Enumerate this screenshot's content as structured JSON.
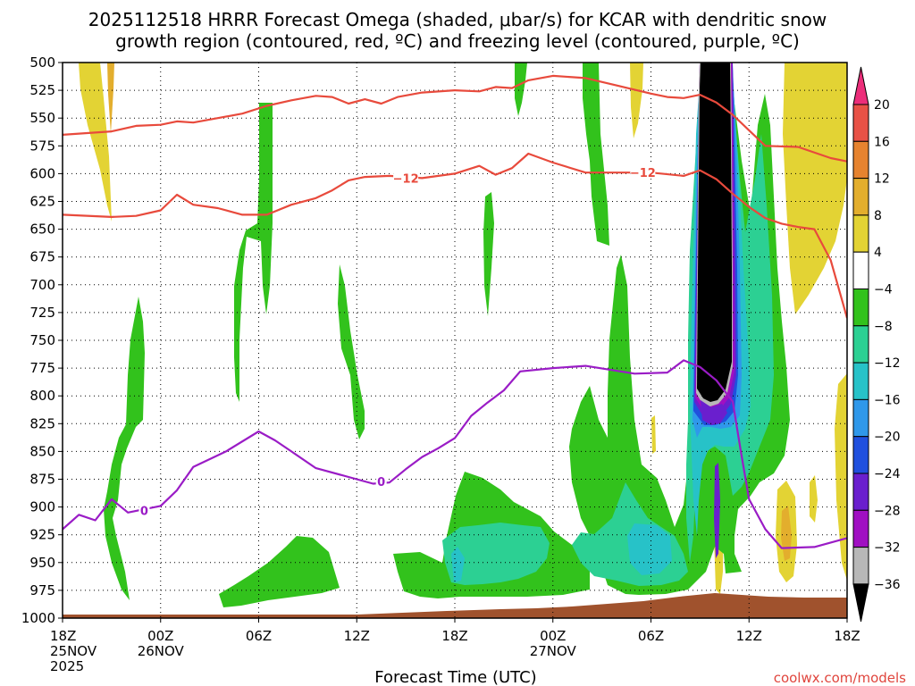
{
  "title_lines": [
    "2025112518 HRRR Forecast Omega (shaded, μbar/s) for KCAR with dendritic snow",
    "growth region (contoured, red, ºC) and freezing level (contoured, purple, ºC)"
  ],
  "credit": "coolwx.com/models",
  "chart_data": {
    "type": "time-height cross-section",
    "title": "2025112518 HRRR Forecast Omega (shaded, μbar/s) for KCAR with dendritic snow growth region (contoured, red, ºC) and freezing level (contoured, purple, ºC)",
    "xlabel": "Forecast Time (UTC)",
    "ylabel": "",
    "x_range_hours": [
      0,
      48
    ],
    "y_range_hpa": [
      1000,
      500
    ],
    "grid": "dotted",
    "y_ticks": [
      "500",
      "525",
      "550",
      "575",
      "600",
      "625",
      "650",
      "675",
      "700",
      "725",
      "750",
      "775",
      "800",
      "825",
      "850",
      "875",
      "900",
      "925",
      "950",
      "975",
      "1000"
    ],
    "x_ticks": [
      {
        "hour": 0,
        "lines": [
          "18Z",
          "25NOV",
          "2025"
        ]
      },
      {
        "hour": 6,
        "lines": [
          "00Z",
          "26NOV"
        ]
      },
      {
        "hour": 12,
        "lines": [
          "06Z"
        ]
      },
      {
        "hour": 18,
        "lines": [
          "12Z"
        ]
      },
      {
        "hour": 24,
        "lines": [
          "18Z"
        ]
      },
      {
        "hour": 30,
        "lines": [
          "00Z",
          "27NOV"
        ]
      },
      {
        "hour": 36,
        "lines": [
          "06Z"
        ]
      },
      {
        "hour": 42,
        "lines": [
          "12Z"
        ]
      },
      {
        "hour": 48,
        "lines": [
          "18Z"
        ]
      }
    ],
    "colorbar": {
      "labels": [
        "20",
        "16",
        "12",
        "8",
        "4",
        "−4",
        "−8",
        "−12",
        "−16",
        "−20",
        "−24",
        "−28",
        "−32",
        "−36"
      ],
      "colors": [
        "#ec2e7a",
        "#e85246",
        "#e6832f",
        "#e3ae2d",
        "#e3d334",
        "#ffffff",
        "#32c21c",
        "#2cd093",
        "#27c2c8",
        "#2f98ea",
        "#2050de",
        "#6a1fce",
        "#a00fc2",
        "#b8b8b8",
        "#000000"
      ]
    },
    "series": [
      {
        "name": "-12",
        "color": "#e84a3c",
        "points": [
          [
            0,
            565
          ],
          [
            3,
            562
          ],
          [
            4.5,
            557
          ],
          [
            6,
            556
          ],
          [
            7,
            553
          ],
          [
            8,
            554
          ],
          [
            9.5,
            550
          ],
          [
            11,
            546
          ],
          [
            12.5,
            539
          ],
          [
            14,
            534
          ],
          [
            15.5,
            530
          ],
          [
            16.5,
            531
          ],
          [
            17.5,
            537
          ],
          [
            18.5,
            533
          ],
          [
            19.5,
            537
          ],
          [
            20.5,
            531
          ],
          [
            22,
            527
          ],
          [
            24,
            525
          ],
          [
            25.5,
            526
          ],
          [
            26.5,
            522
          ],
          [
            27.5,
            523
          ],
          [
            28.5,
            516
          ],
          [
            30,
            512
          ],
          [
            32,
            514
          ],
          [
            34,
            521
          ],
          [
            36,
            528
          ],
          [
            37,
            531
          ],
          [
            38,
            532
          ],
          [
            39,
            529
          ],
          [
            40,
            536
          ],
          [
            41,
            547
          ],
          [
            42,
            561
          ],
          [
            43,
            575
          ],
          [
            45,
            576
          ],
          [
            47,
            586
          ],
          [
            48,
            589
          ]
        ]
      },
      {
        "name": "-12",
        "color": "#e84a3c",
        "points": [
          [
            0,
            637
          ],
          [
            3,
            639
          ],
          [
            4.5,
            638
          ],
          [
            6,
            633
          ],
          [
            7,
            619
          ],
          [
            8,
            628
          ],
          [
            9.5,
            631
          ],
          [
            11,
            637
          ],
          [
            12.5,
            637
          ],
          [
            14,
            628
          ],
          [
            15.5,
            622
          ],
          [
            16.5,
            615
          ],
          [
            17.5,
            606
          ],
          [
            18.5,
            603
          ],
          [
            20,
            602
          ],
          [
            22,
            604
          ],
          [
            24,
            600
          ],
          [
            25.5,
            593
          ],
          [
            26.5,
            601
          ],
          [
            27.5,
            595
          ],
          [
            28.5,
            582
          ],
          [
            30,
            590
          ],
          [
            32,
            599
          ],
          [
            34,
            599
          ],
          [
            36,
            599
          ],
          [
            38,
            602
          ],
          [
            39,
            597
          ],
          [
            40,
            605
          ],
          [
            41,
            618
          ],
          [
            42,
            630
          ],
          [
            43,
            640
          ],
          [
            44,
            645
          ],
          [
            45,
            648
          ],
          [
            46,
            650
          ],
          [
            47,
            678
          ],
          [
            48,
            730
          ]
        ]
      },
      {
        "name": "0",
        "color": "#9a1cc6",
        "points": [
          [
            0,
            920
          ],
          [
            1,
            907
          ],
          [
            2,
            912
          ],
          [
            3,
            893
          ],
          [
            4,
            905
          ],
          [
            5,
            902
          ],
          [
            6,
            899
          ],
          [
            7,
            885
          ],
          [
            8,
            864
          ],
          [
            10,
            850
          ],
          [
            12,
            832
          ],
          [
            13,
            840
          ],
          [
            14,
            850
          ],
          [
            15.5,
            865
          ],
          [
            17.5,
            873
          ],
          [
            19,
            879
          ],
          [
            20,
            878
          ],
          [
            21,
            866
          ],
          [
            22,
            855
          ],
          [
            23,
            847
          ],
          [
            24,
            838
          ],
          [
            25,
            818
          ],
          [
            26,
            806
          ],
          [
            27,
            795
          ],
          [
            28,
            778
          ],
          [
            30,
            775
          ],
          [
            32,
            773
          ],
          [
            35,
            780
          ],
          [
            37,
            779
          ],
          [
            38,
            768
          ],
          [
            39,
            774
          ],
          [
            40,
            786
          ],
          [
            41,
            805
          ],
          [
            41.5,
            850
          ],
          [
            42,
            893
          ],
          [
            43,
            920
          ],
          [
            44,
            937
          ],
          [
            46,
            936
          ],
          [
            47,
            932
          ],
          [
            48,
            928
          ]
        ]
      }
    ],
    "contour_labels": [
      {
        "text": "−12",
        "hour": 21,
        "p": 604,
        "color": "#e84a3c"
      },
      {
        "text": "−12",
        "hour": 35.5,
        "p": 599,
        "color": "#e84a3c"
      },
      {
        "text": "0",
        "hour": 5,
        "p": 903,
        "color": "#9a1cc6"
      },
      {
        "text": "0",
        "hour": 19.5,
        "p": 877,
        "color": "#9a1cc6"
      }
    ],
    "terrain_color": "#a0522d"
  }
}
